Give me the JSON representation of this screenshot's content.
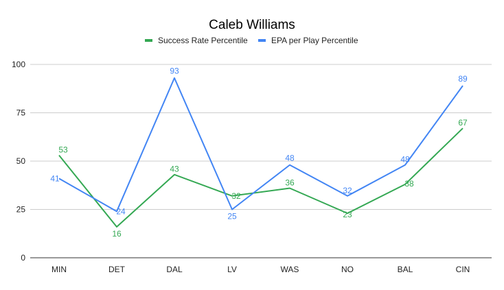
{
  "chart_data": {
    "type": "line",
    "title": "Caleb Williams",
    "xlabel": "",
    "ylabel": "",
    "categories": [
      "MIN",
      "DET",
      "DAL",
      "LV",
      "WAS",
      "NO",
      "BAL",
      "CIN"
    ],
    "ylim": [
      0,
      100
    ],
    "yticks": [
      0,
      25,
      50,
      75,
      100
    ],
    "grid": true,
    "legend_position": "top",
    "series": [
      {
        "name": "Success Rate Percentile",
        "color": "#34a853",
        "values": [
          53,
          16,
          43,
          32,
          36,
          23,
          38,
          67
        ]
      },
      {
        "name": "EPA per Play Percentile",
        "color": "#4285f4",
        "values": [
          41,
          24,
          93,
          25,
          48,
          32,
          48,
          89
        ]
      }
    ]
  }
}
